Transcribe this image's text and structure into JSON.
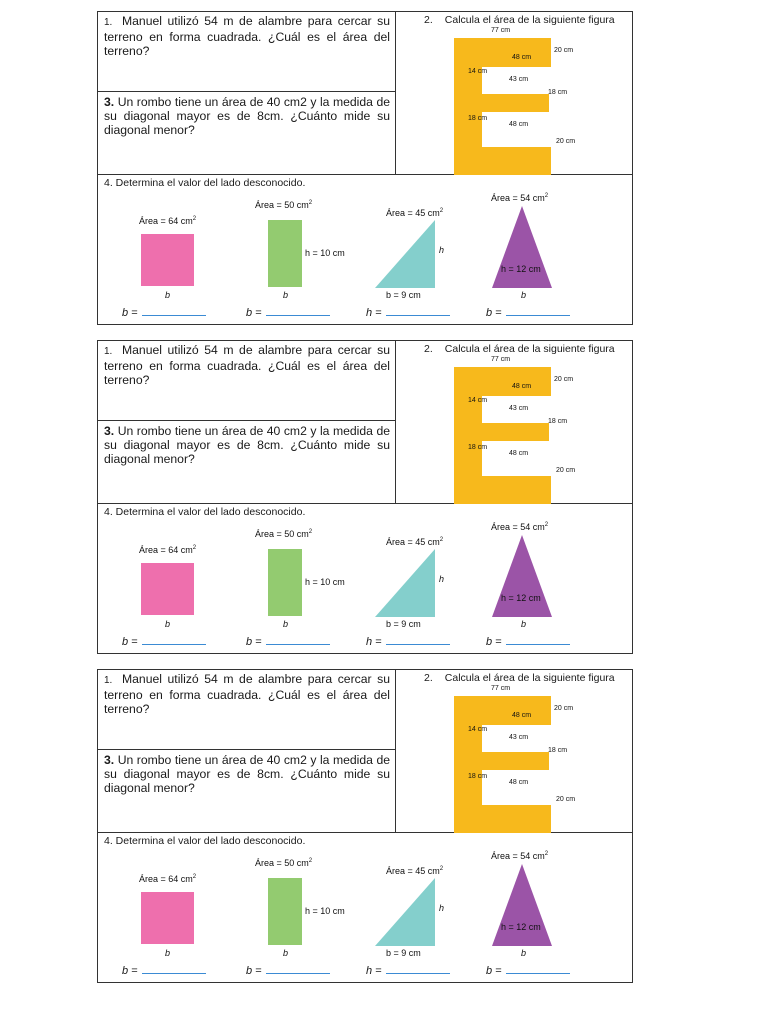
{
  "q1": {
    "number": "1.",
    "text": "Manuel utilizó 54 m de alambre para cercar su terreno en forma cuadrada. ¿Cuál es el área del terreno?"
  },
  "q2": {
    "number": "2.",
    "text": "Calcula el área de la siguiente figura",
    "labels": {
      "top": "77 cm",
      "right_top": "20 cm",
      "inner_top": "48 cm",
      "left_upper": "14 cm",
      "inner_mid": "43 cm",
      "right_mid": "18 cm",
      "left_lower": "18 cm",
      "inner_bottom": "48 cm",
      "right_bottom": "20 cm"
    },
    "color": "#f7b91c"
  },
  "q3": {
    "number": "3.",
    "text": "Un rombo tiene un área de 40 cm2 y la medida de su diagonal mayor es de 8cm. ¿Cuánto mide su diagonal menor?"
  },
  "q4": {
    "title": "4. Determina el valor del lado desconocido.",
    "square": {
      "area_label": "Área = 64 cm",
      "sup": "2",
      "base": "b",
      "answer": "b =",
      "color": "#ee6fad"
    },
    "rectangle": {
      "area_label": "Área = 50 cm",
      "sup": "2",
      "height": "h = 10 cm",
      "base": "b",
      "answer": "b =",
      "color": "#93cb70"
    },
    "right_triangle": {
      "area_label": "Área = 45 cm",
      "sup": "2",
      "height": "h",
      "base": "b = 9 cm",
      "answer": "h =",
      "color": "#84cfcc"
    },
    "triangle": {
      "area_label": "Área = 54 cm",
      "sup": "2",
      "height": "h = 12 cm",
      "base": "b",
      "answer": "b =",
      "color": "#9b54a7"
    }
  }
}
